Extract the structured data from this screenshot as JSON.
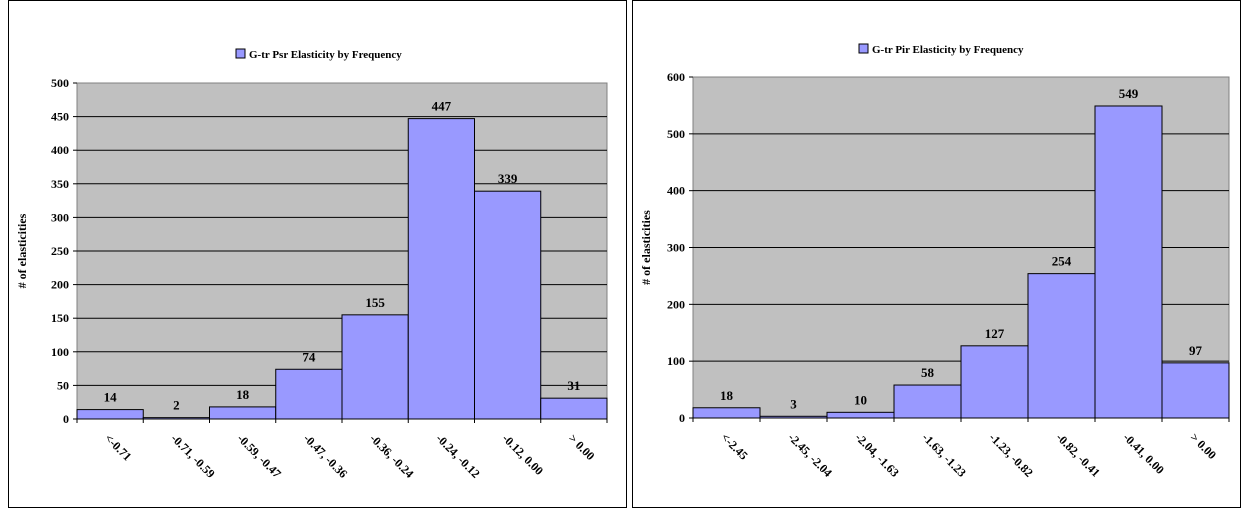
{
  "chart_data": [
    {
      "type": "bar",
      "title": "",
      "legend": [
        "G-tr Psr Elasticity by Frequency"
      ],
      "legend_position": "top",
      "xlabel": "",
      "ylabel": "# of elasticities",
      "ylim": [
        0,
        500
      ],
      "yticks": [
        "0",
        "50",
        "100",
        "150",
        "200",
        "250",
        "300",
        "350",
        "400",
        "450",
        "500"
      ],
      "grid": true,
      "categories": [
        "<-0.71",
        "-0.71, -0.59",
        "-0.59, -0.47",
        "-0.47, -0.36",
        "-0.36, -0.24",
        "-0.24, -0.12",
        "-0.12, 0.00",
        "> 0.00"
      ],
      "series": [
        {
          "name": "G-tr Psr Elasticity by Frequency",
          "values": [
            14,
            2,
            18,
            74,
            155,
            447,
            339,
            31
          ]
        }
      ],
      "data_labels": [
        "14",
        "2",
        "18",
        "74",
        "155",
        "447",
        "339",
        "31"
      ],
      "colors": {
        "bar": "#9999ff",
        "plot_bg": "#c0c0c0"
      }
    },
    {
      "type": "bar",
      "title": "",
      "legend": [
        "G-tr Pir Elasticity by Frequency"
      ],
      "legend_position": "top",
      "xlabel": "",
      "ylabel": "# of elasticities",
      "ylim": [
        0,
        600
      ],
      "yticks": [
        "0",
        "100",
        "200",
        "300",
        "400",
        "500",
        "600"
      ],
      "grid": true,
      "categories": [
        "<-2.45",
        "-2.45, -2.04",
        "-2.04, -1.63",
        "-1.63, -1.23",
        "-1.23, -0.82",
        "-0.82, -0.41",
        "-0.41, 0.00",
        "> 0.00"
      ],
      "series": [
        {
          "name": "G-tr Pir Elasticity by Frequency",
          "values": [
            18,
            3,
            10,
            58,
            127,
            254,
            549,
            97
          ]
        }
      ],
      "data_labels": [
        "18",
        "3",
        "10",
        "58",
        "127",
        "254",
        "549",
        "97"
      ],
      "colors": {
        "bar": "#9999ff",
        "plot_bg": "#c0c0c0"
      }
    }
  ]
}
